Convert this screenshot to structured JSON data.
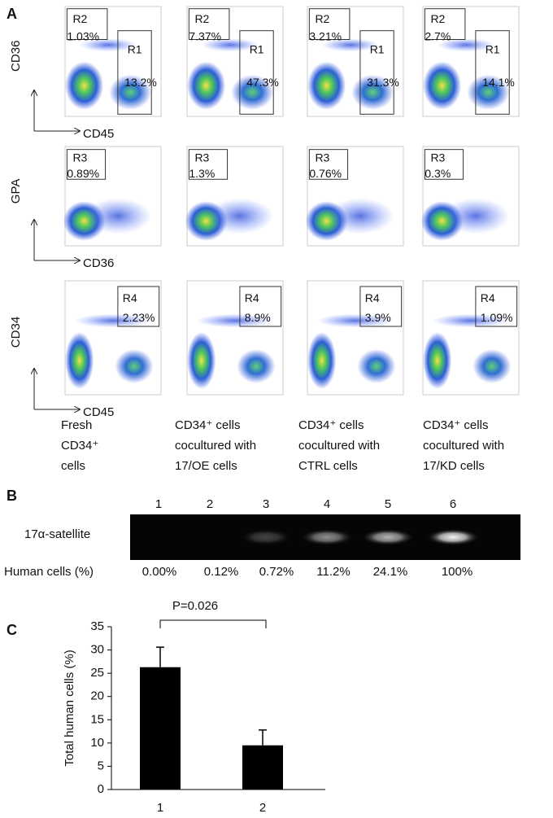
{
  "panel_a": {
    "label": "A",
    "rows": [
      {
        "y_axis": "CD36",
        "x_axis": "CD45",
        "plots": [
          {
            "gates": [
              {
                "name": "R2",
                "pct": "1.03%"
              },
              {
                "name": "R1",
                "pct": "13.2%"
              }
            ]
          },
          {
            "gates": [
              {
                "name": "R2",
                "pct": "7.37%"
              },
              {
                "name": "R1",
                "pct": "47.3%"
              }
            ]
          },
          {
            "gates": [
              {
                "name": "R2",
                "pct": "3.21%"
              },
              {
                "name": "R1",
                "pct": "31.3%"
              }
            ]
          },
          {
            "gates": [
              {
                "name": "R2",
                "pct": "2.7%"
              },
              {
                "name": "R1",
                "pct": "14.1%"
              }
            ]
          }
        ]
      },
      {
        "y_axis": "GPA",
        "x_axis": "CD36",
        "plots": [
          {
            "gates": [
              {
                "name": "R3",
                "pct": "0.89%"
              }
            ]
          },
          {
            "gates": [
              {
                "name": "R3",
                "pct": "1.3%"
              }
            ]
          },
          {
            "gates": [
              {
                "name": "R3",
                "pct": "0.76%"
              }
            ]
          },
          {
            "gates": [
              {
                "name": "R3",
                "pct": "0.3%"
              }
            ]
          }
        ]
      },
      {
        "y_axis": "CD34",
        "x_axis": "CD45",
        "plots": [
          {
            "gates": [
              {
                "name": "R4",
                "pct": "2.23%"
              }
            ]
          },
          {
            "gates": [
              {
                "name": "R4",
                "pct": "8.9%"
              }
            ]
          },
          {
            "gates": [
              {
                "name": "R4",
                "pct": "3.9%"
              }
            ]
          },
          {
            "gates": [
              {
                "name": "R4",
                "pct": "1.09%"
              }
            ]
          }
        ]
      }
    ],
    "columns": [
      [
        "Fresh",
        "CD34⁺",
        "cells"
      ],
      [
        "CD34⁺ cells",
        "cocultured with",
        "17/OE cells"
      ],
      [
        "CD34⁺ cells",
        "cocultured with",
        "CTRL cells"
      ],
      [
        "CD34⁺ cells",
        "cocultured with",
        "17/KD cells"
      ]
    ]
  },
  "panel_b": {
    "label": "B",
    "lanes": [
      "1",
      "2",
      "3",
      "4",
      "5",
      "6"
    ],
    "band_label": "17α-satellite",
    "row_label": "Human cells (%)",
    "percentages": [
      "0.00%",
      "0.12%",
      "0.72%",
      "11.2%",
      "24.1%",
      "100%"
    ]
  },
  "chart_data": {
    "type": "bar",
    "label": "C",
    "ylabel": "Total human cells (%)",
    "annotation": "P=0.026",
    "categories": [
      "1",
      "2"
    ],
    "values": [
      26.3,
      9.5
    ],
    "errors": [
      4.3,
      3.3
    ],
    "color": "#000000",
    "ylim": [
      0,
      35
    ],
    "yticks": [
      0,
      5,
      10,
      15,
      20,
      25,
      30,
      35
    ]
  }
}
